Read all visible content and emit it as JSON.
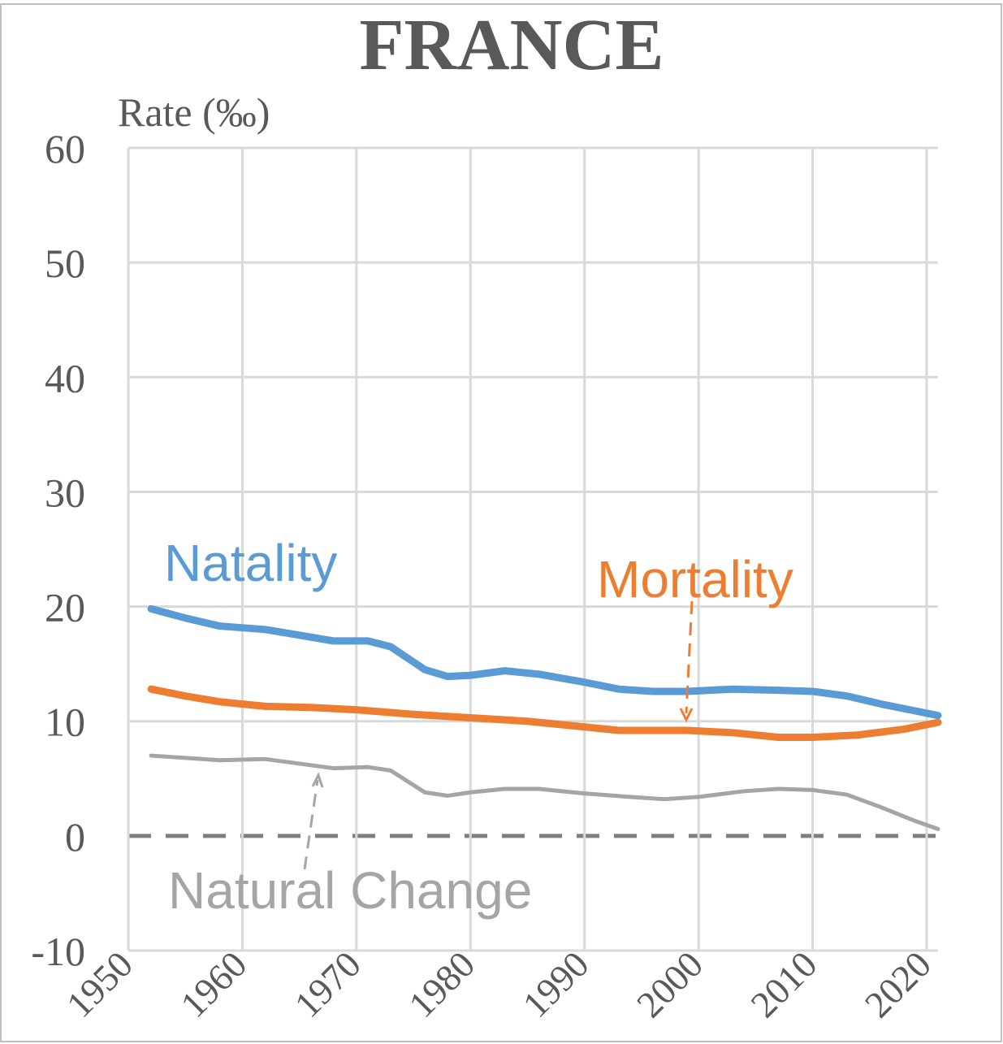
{
  "chart_data": {
    "type": "line",
    "title": "FRANCE",
    "y_label": "Rate (‰)",
    "xlim": [
      1950,
      2021
    ],
    "xticks": [
      1950,
      1960,
      1970,
      1980,
      1990,
      2000,
      2010,
      2020
    ],
    "ylim": [
      -10,
      60
    ],
    "yticks": [
      -10,
      0,
      10,
      20,
      30,
      40,
      50,
      60
    ],
    "grid": true,
    "series": [
      {
        "name": "Natality",
        "color": "#5b9bd5",
        "x": [
          1952,
          1955,
          1958,
          1962,
          1965,
          1968,
          1971,
          1973,
          1976,
          1978,
          1980,
          1983,
          1986,
          1990,
          1993,
          1996,
          1999,
          2003,
          2007,
          2010,
          2013,
          2016,
          2019,
          2021
        ],
        "values": [
          19.8,
          19,
          18.3,
          18,
          17.5,
          17,
          17,
          16.5,
          14.5,
          13.9,
          14,
          14.4,
          14.1,
          13.4,
          12.8,
          12.6,
          12.6,
          12.8,
          12.7,
          12.6,
          12.2,
          11.5,
          10.9,
          10.5
        ]
      },
      {
        "name": "Mortality",
        "color": "#ed7d31",
        "x": [
          1952,
          1955,
          1958,
          1962,
          1966,
          1970,
          1975,
          1980,
          1985,
          1990,
          1993,
          1999,
          2003,
          2007,
          2010,
          2014,
          2018,
          2021
        ],
        "values": [
          12.8,
          12.2,
          11.7,
          11.3,
          11.2,
          11,
          10.6,
          10.3,
          10,
          9.5,
          9.2,
          9.2,
          9,
          8.6,
          8.6,
          8.8,
          9.3,
          9.9
        ]
      },
      {
        "name": "Natural Change",
        "color": "#a5a5a5",
        "x": [
          1952,
          1955,
          1958,
          1962,
          1965,
          1968,
          1971,
          1973,
          1976,
          1978,
          1980,
          1983,
          1986,
          1990,
          1994,
          1997,
          2000,
          2004,
          2007,
          2010,
          2013,
          2016,
          2019,
          2021
        ],
        "values": [
          7,
          6.8,
          6.6,
          6.7,
          6.3,
          5.9,
          6.0,
          5.7,
          3.8,
          3.5,
          3.8,
          4.1,
          4.1,
          3.7,
          3.4,
          3.2,
          3.4,
          3.9,
          4.1,
          4,
          3.6,
          2.5,
          1.3,
          0.6
        ]
      }
    ]
  }
}
